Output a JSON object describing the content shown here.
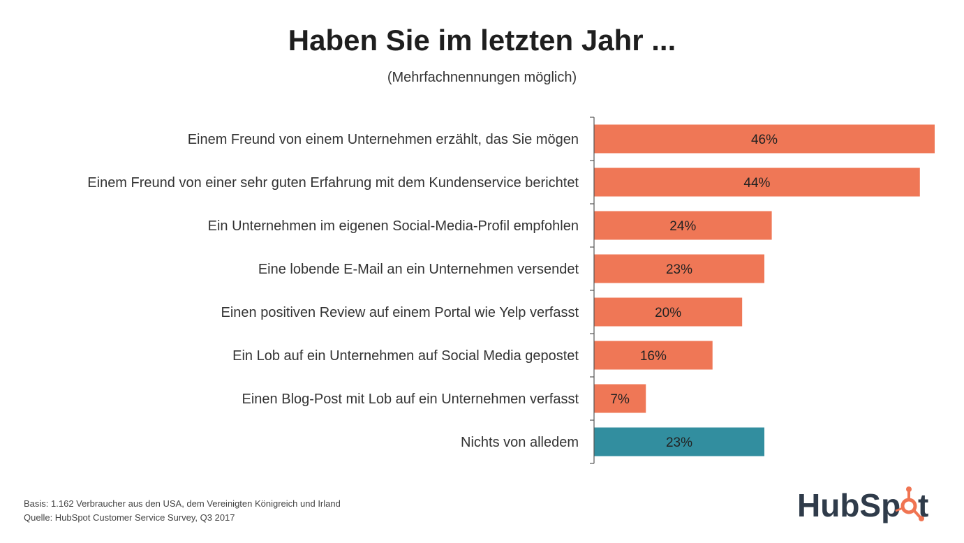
{
  "chart_data": {
    "type": "bar",
    "orientation": "horizontal",
    "title": "Haben Sie im letzten Jahr ...",
    "subtitle": "(Mehrfachnennungen möglich)",
    "categories": [
      "Einem Freund von einem Unternehmen erzählt, das Sie mögen",
      "Einem Freund von einer sehr guten Erfahrung mit dem Kundenservice berichtet",
      "Ein Unternehmen im eigenen Social-Media-Profil empfohlen",
      "Eine lobende E-Mail an ein Unternehmen versendet",
      "Einen positiven Review auf einem Portal wie Yelp verfasst",
      "Ein Lob auf ein Unternehmen auf Social Media gepostet",
      "Einen Blog-Post mit Lob auf ein Unternehmen verfasst",
      "Nichts von alledem"
    ],
    "values": [
      46,
      44,
      24,
      23,
      20,
      16,
      7,
      23
    ],
    "value_labels": [
      "46%",
      "44%",
      "24%",
      "23%",
      "20%",
      "16%",
      "7%",
      "23%"
    ],
    "bar_colors": [
      "#ef7756",
      "#ef7756",
      "#ef7756",
      "#ef7756",
      "#ef7756",
      "#ef7756",
      "#ef7756",
      "#328e9f"
    ],
    "xlim": [
      0,
      46
    ],
    "grid": false,
    "legend": "none"
  },
  "notes": {
    "basis": "Basis: 1.162 Verbraucher aus den USA, dem Vereinigten Königreich und Irland",
    "source": "Quelle: HubSpot Customer Service Survey, Q3 2017"
  },
  "logo": {
    "text_hub": "HubSp",
    "text_t": "t",
    "color_text": "#2f3b4a",
    "color_sprocket": "#f07452"
  }
}
